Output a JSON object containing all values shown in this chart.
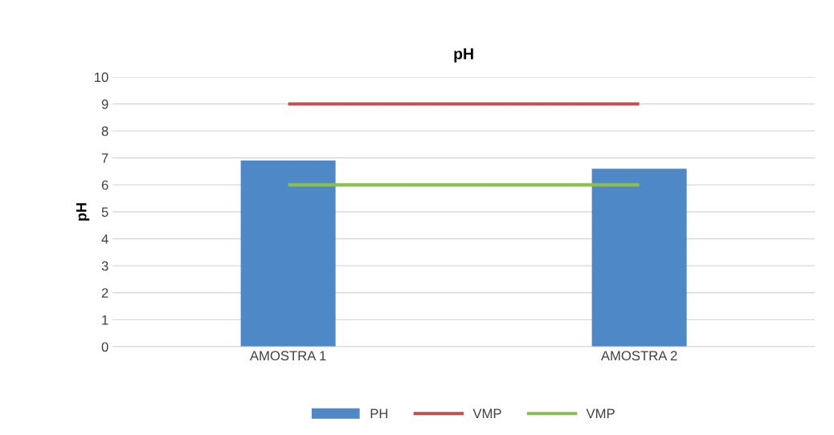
{
  "chart_data": {
    "type": "bar",
    "title": "pH",
    "ylabel": "pH",
    "categories": [
      "AMOSTRA 1",
      "AMOSTRA 2"
    ],
    "series": [
      {
        "name": "PH",
        "color": "#4f88c6",
        "values": [
          6.9,
          6.6
        ]
      },
      {
        "name": "VMP",
        "type": "line",
        "color": "#c0504d",
        "values": [
          9,
          9
        ]
      },
      {
        "name": "VMP",
        "type": "line",
        "color": "#8cbd50",
        "values": [
          6,
          6
        ]
      }
    ],
    "ylim": [
      0,
      10
    ],
    "yticks": [
      0,
      1,
      2,
      3,
      4,
      5,
      6,
      7,
      8,
      9,
      10
    ],
    "grid": "y",
    "legend": "bottom"
  }
}
